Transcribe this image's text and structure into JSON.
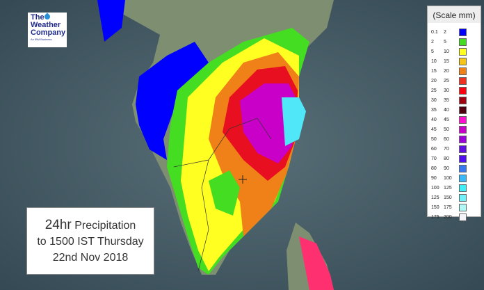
{
  "logo": {
    "line1": "The",
    "line2": "Weather",
    "line3": "Company",
    "tagline": "An IBM Business"
  },
  "caption": {
    "prefix": "24hr",
    "line1": "Precipitation",
    "line2": "to 1500 IST Thursday",
    "line3": "22nd Nov 2018"
  },
  "legend": {
    "title": "(Scale mm)",
    "rows": [
      {
        "from": "0.1",
        "to": "2",
        "color": "#0000ff"
      },
      {
        "from": "2",
        "to": "5",
        "color": "#44dd22"
      },
      {
        "from": "5",
        "to": "10",
        "color": "#ffff22"
      },
      {
        "from": "10",
        "to": "15",
        "color": "#f5c518"
      },
      {
        "from": "15",
        "to": "20",
        "color": "#f08018"
      },
      {
        "from": "20",
        "to": "25",
        "color": "#f03020"
      },
      {
        "from": "25",
        "to": "30",
        "color": "#ff0010"
      },
      {
        "from": "30",
        "to": "35",
        "color": "#a00010"
      },
      {
        "from": "35",
        "to": "40",
        "color": "#500010"
      },
      {
        "from": "40",
        "to": "45",
        "color": "#ff10d0"
      },
      {
        "from": "45",
        "to": "50",
        "color": "#c800c8"
      },
      {
        "from": "50",
        "to": "60",
        "color": "#9a00d8"
      },
      {
        "from": "60",
        "to": "70",
        "color": "#6010e0"
      },
      {
        "from": "70",
        "to": "80",
        "color": "#5010f0"
      },
      {
        "from": "80",
        "to": "90",
        "color": "#3878f0"
      },
      {
        "from": "90",
        "to": "100",
        "color": "#38b8f8"
      },
      {
        "from": "100",
        "to": "125",
        "color": "#40f0f8"
      },
      {
        "from": "125",
        "to": "150",
        "color": "#70f0f8"
      },
      {
        "from": "150",
        "to": "175",
        "color": "#b0f8f8"
      },
      {
        "from": "175",
        "to": "200",
        "color": "#f4f4fa"
      }
    ]
  }
}
